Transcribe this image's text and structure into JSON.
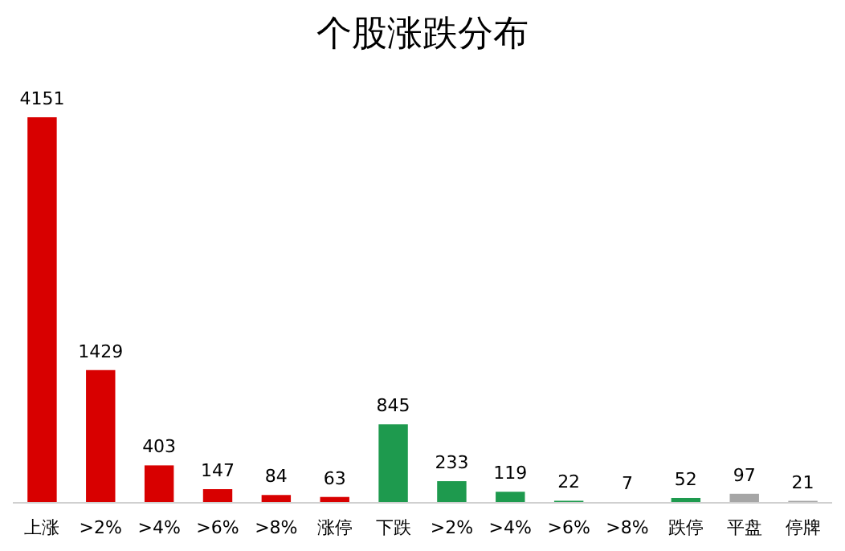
{
  "chart_data": {
    "type": "bar",
    "title": "个股涨跌分布",
    "categories": [
      "上涨",
      ">2%",
      ">4%",
      ">6%",
      ">8%",
      "涨停",
      "下跌",
      ">2%",
      ">4%",
      ">6%",
      ">8%",
      "跌停",
      "平盘",
      "停牌"
    ],
    "values": [
      4151,
      1429,
      403,
      147,
      84,
      63,
      845,
      233,
      119,
      22,
      7,
      52,
      97,
      21
    ],
    "colors": [
      "#d80000",
      "#d80000",
      "#d80000",
      "#d80000",
      "#d80000",
      "#d80000",
      "#1e9a4e",
      "#1e9a4e",
      "#1e9a4e",
      "#1e9a4e",
      "#1e9a4e",
      "#1e9a4e",
      "#a6a6a6",
      "#a6a6a6"
    ],
    "data_labels": true
  }
}
